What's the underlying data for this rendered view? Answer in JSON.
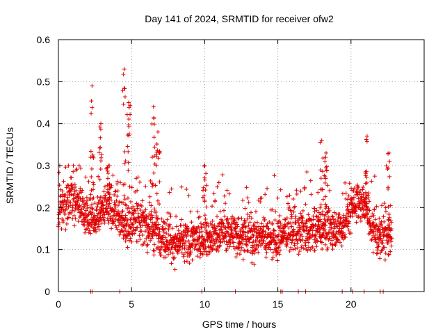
{
  "chart_data": {
    "type": "scatter",
    "title": "Day 141 of 2024, SRMTID for receiver ofw2",
    "xlabel": "GPS time / hours",
    "ylabel": "SRMTID / TECUs",
    "xlim": [
      0,
      25
    ],
    "ylim": [
      0,
      0.6
    ],
    "xticks": [
      "0",
      "5",
      "10",
      "15",
      "20"
    ],
    "xtick_values": [
      0,
      5,
      10,
      15,
      20
    ],
    "yticks": [
      "0",
      "0.1",
      "0.2",
      "0.3",
      "0.4",
      "0.5",
      "0.6"
    ],
    "ytick_values": [
      0,
      0.1,
      0.2,
      0.3,
      0.4,
      0.5,
      0.6
    ],
    "grid": true,
    "marker": "+",
    "color": "#e00000",
    "trend": [
      [
        0.0,
        0.19
      ],
      [
        0.5,
        0.2
      ],
      [
        1.0,
        0.22
      ],
      [
        1.5,
        0.21
      ],
      [
        2.0,
        0.18
      ],
      [
        2.5,
        0.17
      ],
      [
        3.0,
        0.19
      ],
      [
        3.5,
        0.2
      ],
      [
        4.0,
        0.18
      ],
      [
        4.5,
        0.16
      ],
      [
        5.0,
        0.16
      ],
      [
        5.5,
        0.17
      ],
      [
        6.0,
        0.16
      ],
      [
        6.5,
        0.15
      ],
      [
        7.0,
        0.13
      ],
      [
        7.5,
        0.12
      ],
      [
        8.0,
        0.115
      ],
      [
        8.5,
        0.12
      ],
      [
        9.0,
        0.12
      ],
      [
        9.5,
        0.13
      ],
      [
        10.0,
        0.13
      ],
      [
        10.5,
        0.13
      ],
      [
        11.0,
        0.14
      ],
      [
        11.5,
        0.14
      ],
      [
        12.0,
        0.14
      ],
      [
        12.5,
        0.13
      ],
      [
        13.0,
        0.13
      ],
      [
        13.5,
        0.13
      ],
      [
        14.0,
        0.14
      ],
      [
        14.5,
        0.13
      ],
      [
        15.0,
        0.13
      ],
      [
        15.5,
        0.14
      ],
      [
        16.0,
        0.14
      ],
      [
        16.5,
        0.14
      ],
      [
        17.0,
        0.14
      ],
      [
        17.5,
        0.15
      ],
      [
        18.0,
        0.15
      ],
      [
        18.5,
        0.15
      ],
      [
        19.0,
        0.15
      ],
      [
        19.5,
        0.16
      ],
      [
        20.0,
        0.2
      ],
      [
        20.5,
        0.21
      ],
      [
        21.0,
        0.2
      ],
      [
        21.5,
        0.14
      ],
      [
        22.0,
        0.13
      ],
      [
        22.5,
        0.13
      ],
      [
        22.8,
        0.14
      ]
    ],
    "spikes": [
      {
        "x": 2.3,
        "peak": 0.49
      },
      {
        "x": 2.9,
        "peak": 0.4
      },
      {
        "x": 3.4,
        "peak": 0.3
      },
      {
        "x": 4.5,
        "peak": 0.53
      },
      {
        "x": 4.8,
        "peak": 0.45
      },
      {
        "x": 6.5,
        "peak": 0.44
      },
      {
        "x": 6.8,
        "peak": 0.38
      },
      {
        "x": 10.0,
        "peak": 0.3
      },
      {
        "x": 18.0,
        "peak": 0.36
      },
      {
        "x": 18.3,
        "peak": 0.33
      },
      {
        "x": 21.1,
        "peak": 0.37
      },
      {
        "x": 22.6,
        "peak": 0.33
      }
    ],
    "zero_points": [
      2.2,
      2.3,
      4.2,
      9.8,
      12.1,
      15.2,
      15.3,
      16.4,
      16.9,
      19.4,
      20.1,
      20.9,
      22.0,
      22.2
    ]
  }
}
